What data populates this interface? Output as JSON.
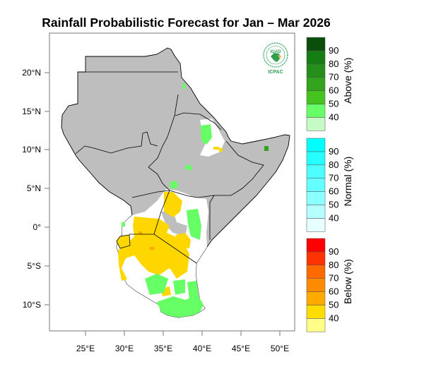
{
  "title": "Rainfall Probabilistic Forecast for Jan – Mar 2026",
  "logo": {
    "top_text": "IGAD",
    "bottom_text": "ICPAC"
  },
  "axes": {
    "lat_labels": [
      "20°N",
      "15°N",
      "10°N",
      "5°N",
      "0°",
      "5°S",
      "10°S"
    ],
    "lon_labels": [
      "25°E",
      "30°E",
      "35°E",
      "40°E",
      "45°E",
      "50°E"
    ]
  },
  "legends": [
    {
      "title": "Above (%)",
      "levels": [
        "40",
        "50",
        "60",
        "70",
        "80",
        "90"
      ],
      "colors": [
        "#c6fbc6",
        "#66ff66",
        "#45c41f",
        "#31a31c",
        "#248f1b",
        "#157d12",
        "#0b4d0b"
      ]
    },
    {
      "title": "Normal (%)",
      "levels": [
        "40",
        "50",
        "60",
        "70",
        "80",
        "90"
      ],
      "colors": [
        "#e6ffff",
        "#b6ffff",
        "#8cffff",
        "#66ffff",
        "#4dffff",
        "#26ffff",
        "#00ffff"
      ]
    },
    {
      "title": "Below (%)",
      "levels": [
        "40",
        "50",
        "60",
        "70",
        "80",
        "90"
      ],
      "colors": [
        "#ffff88",
        "#ffdd00",
        "#ffaa00",
        "#ff8c00",
        "#ff6a00",
        "#ff3300",
        "#ff0000"
      ]
    }
  ],
  "colors": {
    "no_forecast": "#bebebe",
    "above_40": "#66ff66",
    "below_50": "#ffd700",
    "below_60": "#ffa500",
    "above_60": "#31a31c"
  }
}
